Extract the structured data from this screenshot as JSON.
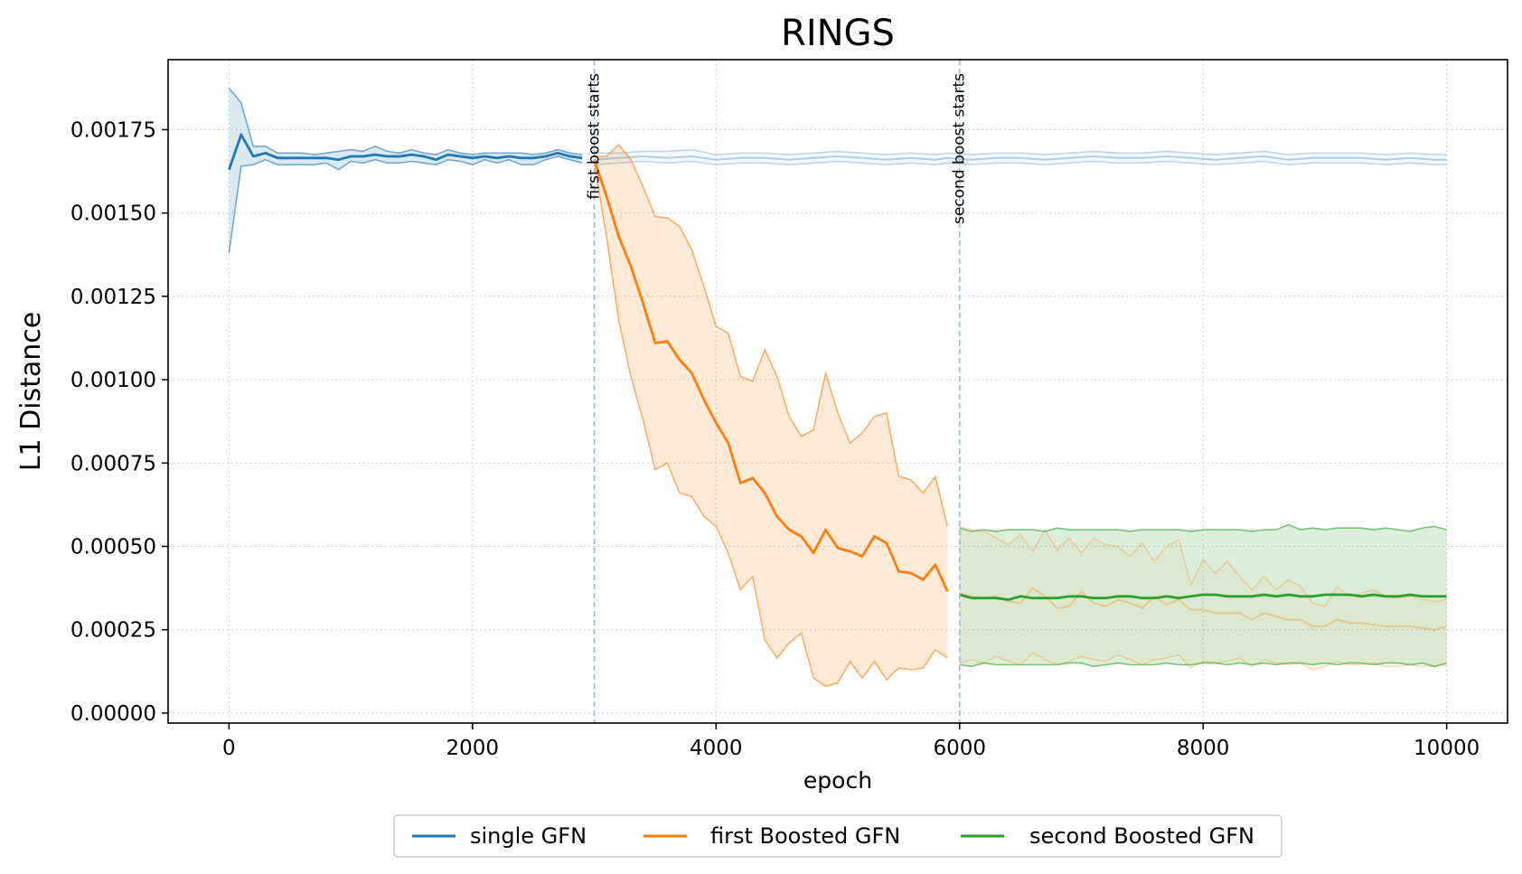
{
  "chart_data": {
    "type": "line",
    "title": "RINGS",
    "xlabel": "epoch",
    "ylabel": "L1 Distance",
    "xlim": [
      -500,
      10500
    ],
    "ylim": [
      -3e-05,
      0.00196
    ],
    "xticks": [
      0,
      2000,
      4000,
      6000,
      8000,
      10000
    ],
    "xtick_labels": [
      "0",
      "2000",
      "4000",
      "6000",
      "8000",
      "10000"
    ],
    "yticks": [
      0,
      0.00025,
      0.0005,
      0.00075,
      0.001,
      0.00125,
      0.0015,
      0.00175
    ],
    "ytick_labels": [
      "0.00000",
      "0.00025",
      "0.00050",
      "0.00075",
      "0.00100",
      "0.00125",
      "0.00150",
      "0.00175"
    ],
    "grid": true,
    "legend_position": "bottom-center",
    "colors": {
      "single": "#1f77b4",
      "first": "#ff7f0e",
      "second": "#2ca02c",
      "vline": "#9ebfd6"
    },
    "annotations": [
      {
        "x": 3000,
        "text": "first boost starts"
      },
      {
        "x": 6000,
        "text": "second boost starts"
      }
    ],
    "series": [
      {
        "name": "single GFN",
        "key": "single",
        "x": [
          0,
          100,
          200,
          300,
          400,
          500,
          600,
          700,
          800,
          900,
          1000,
          1100,
          1200,
          1300,
          1400,
          1500,
          1600,
          1700,
          1800,
          1900,
          2000,
          2100,
          2200,
          2300,
          2400,
          2500,
          2600,
          2700,
          2800,
          2900
        ],
        "mean": [
          0.00163,
          0.001735,
          0.00167,
          0.00168,
          0.001665,
          0.001665,
          0.001665,
          0.001665,
          0.001665,
          0.00166,
          0.00167,
          0.00167,
          0.001675,
          0.00167,
          0.00167,
          0.001675,
          0.00167,
          0.00166,
          0.001675,
          0.00167,
          0.001665,
          0.00167,
          0.001665,
          0.00167,
          0.001665,
          0.001665,
          0.00167,
          0.00168,
          0.00167,
          0.001665
        ],
        "upper": [
          0.001875,
          0.00183,
          0.0017,
          0.0017,
          0.00168,
          0.00168,
          0.00168,
          0.001675,
          0.00168,
          0.001685,
          0.00169,
          0.001685,
          0.0017,
          0.001685,
          0.00168,
          0.00169,
          0.00168,
          0.001675,
          0.00169,
          0.00168,
          0.001675,
          0.00168,
          0.00168,
          0.00168,
          0.00168,
          0.001675,
          0.00168,
          0.00169,
          0.00168,
          0.001675
        ],
        "lower": [
          0.00138,
          0.00164,
          0.001645,
          0.00166,
          0.001645,
          0.001645,
          0.001645,
          0.001645,
          0.00165,
          0.00163,
          0.001655,
          0.00165,
          0.00166,
          0.00165,
          0.00165,
          0.001655,
          0.00165,
          0.001645,
          0.00166,
          0.001655,
          0.001645,
          0.00166,
          0.00165,
          0.00166,
          0.001645,
          0.001645,
          0.00166,
          0.00167,
          0.00166,
          0.00165
        ],
        "faded_x": [
          3000,
          3200,
          3400,
          3600,
          3800,
          4000,
          4200,
          4400,
          4600,
          4800,
          5000,
          5200,
          5400,
          5600,
          5800,
          5900,
          6100,
          6300,
          6500,
          6700,
          6900,
          7100,
          7300,
          7500,
          7700,
          7900,
          8100,
          8300,
          8500,
          8700,
          8900,
          9100,
          9300,
          9500,
          9700,
          9900,
          10000
        ],
        "faded_mean": [
          0.00166,
          0.001665,
          0.00167,
          0.001665,
          0.00167,
          0.00166,
          0.001665,
          0.001665,
          0.00166,
          0.001665,
          0.00167,
          0.001665,
          0.00166,
          0.001665,
          0.00166,
          0.001665,
          0.00166,
          0.001665,
          0.001665,
          0.00166,
          0.001665,
          0.00167,
          0.001665,
          0.001665,
          0.00167,
          0.001665,
          0.00166,
          0.001665,
          0.00167,
          0.00166,
          0.001665,
          0.001665,
          0.001665,
          0.00166,
          0.001665,
          0.00166,
          0.00166
        ],
        "faded_upper": [
          0.00168,
          0.00168,
          0.001685,
          0.001685,
          0.00169,
          0.001675,
          0.00168,
          0.00168,
          0.001675,
          0.00168,
          0.001685,
          0.00168,
          0.001675,
          0.00168,
          0.001675,
          0.00168,
          0.001675,
          0.00168,
          0.00168,
          0.001675,
          0.00168,
          0.001685,
          0.00168,
          0.00168,
          0.001685,
          0.00168,
          0.001675,
          0.00168,
          0.001685,
          0.001675,
          0.00168,
          0.00168,
          0.00168,
          0.001675,
          0.00168,
          0.001675,
          0.001675
        ],
        "faded_lower": [
          0.001645,
          0.00165,
          0.001655,
          0.00165,
          0.001655,
          0.001645,
          0.00165,
          0.00165,
          0.001645,
          0.00165,
          0.001655,
          0.00165,
          0.001645,
          0.00165,
          0.001645,
          0.00165,
          0.001645,
          0.00165,
          0.00165,
          0.001645,
          0.00165,
          0.001655,
          0.00165,
          0.00165,
          0.001655,
          0.00165,
          0.001645,
          0.00165,
          0.001655,
          0.001645,
          0.00165,
          0.00165,
          0.00165,
          0.001645,
          0.00165,
          0.001645,
          0.001645
        ]
      },
      {
        "name": "first Boosted GFN",
        "key": "first",
        "x": [
          3000,
          3100,
          3200,
          3300,
          3400,
          3500,
          3600,
          3700,
          3800,
          3900,
          4000,
          4100,
          4200,
          4300,
          4400,
          4500,
          4600,
          4700,
          4800,
          4900,
          5000,
          5100,
          5200,
          5300,
          5400,
          5500,
          5600,
          5700,
          5800,
          5900
        ],
        "mean": [
          0.00166,
          0.00155,
          0.00143,
          0.00134,
          0.00123,
          0.00111,
          0.001115,
          0.00106,
          0.00102,
          0.00094,
          0.00087,
          0.00081,
          0.00069,
          0.000705,
          0.00066,
          0.00059,
          0.00055,
          0.00053,
          0.00048,
          0.00055,
          0.000495,
          0.000485,
          0.00047,
          0.00053,
          0.00051,
          0.000425,
          0.00042,
          0.0004,
          0.000445,
          0.000365
        ],
        "upper": [
          0.00167,
          0.00167,
          0.001705,
          0.00166,
          0.00158,
          0.00149,
          0.001485,
          0.00146,
          0.00139,
          0.00128,
          0.00116,
          0.00114,
          0.00101,
          0.000995,
          0.00109,
          0.00101,
          0.00089,
          0.00083,
          0.00085,
          0.00102,
          0.0009,
          0.00081,
          0.00084,
          0.00089,
          0.0009,
          0.00071,
          0.0007,
          0.00066,
          0.00071,
          0.00056
        ],
        "lower": [
          0.00165,
          0.00143,
          0.00118,
          0.00101,
          0.00088,
          0.00073,
          0.00075,
          0.00066,
          0.00065,
          0.00059,
          0.00056,
          0.00048,
          0.00037,
          0.00041,
          0.00022,
          0.000165,
          0.00021,
          0.00024,
          0.000105,
          8e-05,
          9e-05,
          0.000155,
          0.000105,
          0.000155,
          0.0001,
          0.000135,
          0.00013,
          0.000135,
          0.00019,
          0.000165
        ],
        "faded_x": [
          6000,
          6100,
          6200,
          6300,
          6400,
          6500,
          6600,
          6700,
          6800,
          6900,
          7000,
          7100,
          7200,
          7300,
          7400,
          7500,
          7600,
          7700,
          7800,
          7900,
          8000,
          8100,
          8200,
          8300,
          8400,
          8500,
          8600,
          8700,
          8800,
          8900,
          9000,
          9100,
          9200,
          9300,
          9400,
          9500,
          9600,
          9700,
          9800,
          9900,
          10000
        ],
        "faded_mean": [
          0.00036,
          0.00035,
          0.000345,
          0.00035,
          0.000335,
          0.00033,
          0.000375,
          0.00035,
          0.000315,
          0.00032,
          0.000365,
          0.00033,
          0.00032,
          0.00034,
          0.00033,
          0.000315,
          0.00035,
          0.000325,
          0.00034,
          0.00031,
          0.00031,
          0.0003,
          0.0003,
          0.0003,
          0.00028,
          0.0003,
          0.00029,
          0.00028,
          0.00028,
          0.00026,
          0.00026,
          0.00028,
          0.00027,
          0.00027,
          0.000265,
          0.00026,
          0.00026,
          0.00026,
          0.000255,
          0.00025,
          0.00026
        ],
        "faded_upper": [
          0.00056,
          0.00055,
          0.000545,
          0.000525,
          0.000505,
          0.000535,
          0.000485,
          0.00055,
          0.00049,
          0.000525,
          0.00048,
          0.000525,
          0.000505,
          0.0005,
          0.00047,
          0.00051,
          0.000455,
          0.0005,
          0.00052,
          0.000385,
          0.00046,
          0.00042,
          0.000455,
          0.00041,
          0.00037,
          0.00041,
          0.00037,
          0.0004,
          0.00038,
          0.00033,
          0.00032,
          0.00038,
          0.00035,
          0.00036,
          0.00037,
          0.00035,
          0.000345,
          0.00035,
          0.00034,
          0.000335,
          0.00034
        ],
        "faded_lower": [
          0.00015,
          0.00016,
          0.00015,
          0.00017,
          0.000155,
          0.000145,
          0.00018,
          0.00016,
          0.000145,
          0.000155,
          0.00017,
          0.00016,
          0.000155,
          0.000175,
          0.00016,
          0.000145,
          0.00016,
          0.000165,
          0.000175,
          0.000135,
          0.000155,
          0.00015,
          0.000155,
          0.000165,
          0.00014,
          0.00016,
          0.00015,
          0.000145,
          0.00015,
          0.00013,
          0.00014,
          0.000155,
          0.000145,
          0.000145,
          0.00015,
          0.00014,
          0.00014,
          0.000145,
          0.00014,
          0.00014,
          0.000145
        ]
      },
      {
        "name": "second Boosted GFN",
        "key": "second",
        "x": [
          6000,
          6100,
          6200,
          6300,
          6400,
          6500,
          6600,
          6700,
          6800,
          6900,
          7000,
          7100,
          7200,
          7300,
          7400,
          7500,
          7600,
          7700,
          7800,
          7900,
          8000,
          8100,
          8200,
          8300,
          8400,
          8500,
          8600,
          8700,
          8800,
          8900,
          9000,
          9100,
          9200,
          9300,
          9400,
          9500,
          9600,
          9700,
          9800,
          9900,
          10000
        ],
        "mean": [
          0.000355,
          0.000345,
          0.000345,
          0.000345,
          0.00034,
          0.00035,
          0.000345,
          0.000345,
          0.000345,
          0.00035,
          0.00035,
          0.000345,
          0.000345,
          0.00035,
          0.00035,
          0.000345,
          0.000345,
          0.00035,
          0.000345,
          0.00035,
          0.000355,
          0.000355,
          0.00035,
          0.00035,
          0.00035,
          0.000355,
          0.00035,
          0.000355,
          0.00035,
          0.00035,
          0.000355,
          0.000355,
          0.000355,
          0.00035,
          0.000355,
          0.00035,
          0.00035,
          0.000355,
          0.00035,
          0.00035,
          0.00035
        ],
        "upper": [
          0.000555,
          0.000545,
          0.00055,
          0.000545,
          0.00055,
          0.00055,
          0.00055,
          0.000545,
          0.000555,
          0.00055,
          0.00055,
          0.00055,
          0.00055,
          0.00055,
          0.000545,
          0.00055,
          0.00055,
          0.00055,
          0.00055,
          0.000545,
          0.00055,
          0.00055,
          0.00055,
          0.00055,
          0.000545,
          0.00055,
          0.00055,
          0.000565,
          0.00055,
          0.000555,
          0.00055,
          0.000555,
          0.000555,
          0.000555,
          0.00055,
          0.000555,
          0.00055,
          0.000545,
          0.000555,
          0.00056,
          0.00055
        ],
        "lower": [
          0.000145,
          0.00014,
          0.00015,
          0.000145,
          0.000145,
          0.000145,
          0.000145,
          0.000145,
          0.000145,
          0.00015,
          0.00015,
          0.00014,
          0.000145,
          0.00015,
          0.000145,
          0.000145,
          0.000145,
          0.00015,
          0.000145,
          0.000145,
          0.00015,
          0.00015,
          0.000145,
          0.00015,
          0.000145,
          0.00015,
          0.000145,
          0.00015,
          0.00015,
          0.000145,
          0.00015,
          0.000145,
          0.00015,
          0.00015,
          0.000145,
          0.00015,
          0.00015,
          0.000145,
          0.00015,
          0.00014,
          0.00015
        ]
      }
    ]
  }
}
